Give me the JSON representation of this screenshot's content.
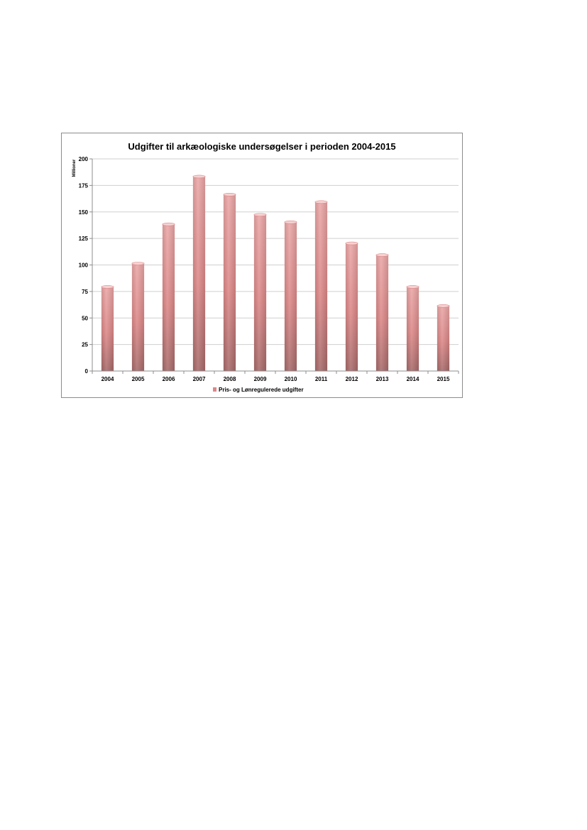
{
  "chart_data": {
    "type": "bar",
    "title": "Udgifter til arkæologiske undersøgelser i perioden 2004-2015",
    "xlabel": "",
    "ylabel": "Millioner",
    "categories": [
      "2004",
      "2005",
      "2006",
      "2007",
      "2008",
      "2009",
      "2010",
      "2011",
      "2012",
      "2013",
      "2014",
      "2015"
    ],
    "series": [
      {
        "name": "Pris- og Lønregulerede udgifter",
        "values": [
          80,
          102,
          139,
          184,
          167,
          148,
          141,
          160,
          121,
          110,
          80,
          62
        ]
      }
    ],
    "ylim": [
      0,
      200
    ],
    "yticks": [
      "0",
      "25",
      "50",
      "75",
      "100",
      "125",
      "150",
      "175",
      "200"
    ],
    "grid": true,
    "legend": "bottom",
    "colors": {
      "bar_top": "#eba6a6",
      "bar_mid": "#dd8787",
      "bar_bottom": "#a86a6a",
      "bar_cap": "#f7d2d2",
      "gridline": "#cfcfcf",
      "axis": "#8c8c8c"
    }
  }
}
